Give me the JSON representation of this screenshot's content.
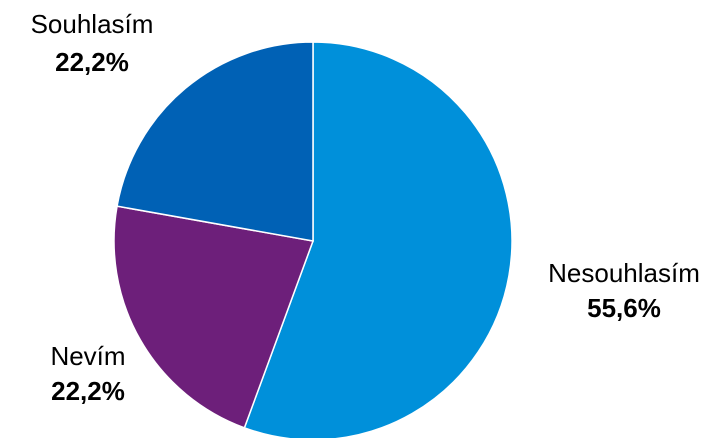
{
  "chart_data": {
    "type": "pie",
    "slices": [
      {
        "label": "Nesouhlasím",
        "value": 55.6,
        "value_label": "55,6%",
        "color": "#0090DA"
      },
      {
        "label": "Nevím",
        "value": 22.2,
        "value_label": "22,2%",
        "color": "#6D1F7A"
      },
      {
        "label": "Souhlasím",
        "value": 22.2,
        "value_label": "22,2%",
        "color": "#0061B5"
      }
    ],
    "start_angle": "12 o'clock",
    "direction": "clockwise",
    "slice_border": "#ffffff",
    "legend": "none"
  }
}
